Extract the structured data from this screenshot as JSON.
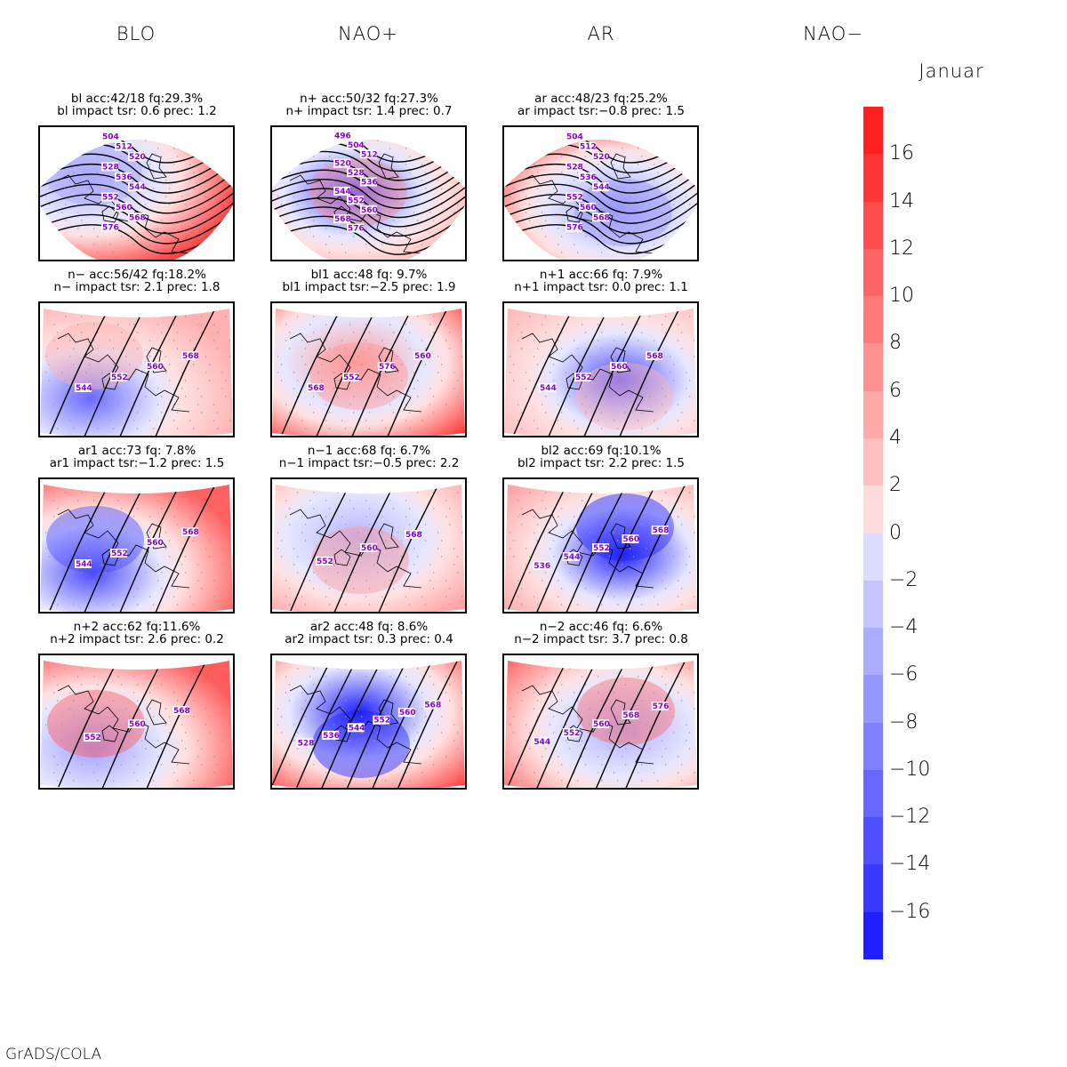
{
  "columns": [
    "BLO",
    "NAO+",
    "AR",
    "NAO−"
  ],
  "month": "Januar",
  "footer": "GrADS/COLA",
  "colorbar": {
    "ticks": [
      "16",
      "14",
      "12",
      "10",
      "8",
      "6",
      "4",
      "2",
      "0",
      "−2",
      "−4",
      "−6",
      "−8",
      "−10",
      "−12",
      "−14",
      "−16"
    ],
    "colors": [
      "#ff1f1f",
      "#ff3535",
      "#ff4d4d",
      "#ff6464",
      "#ff7a7a",
      "#ff9191",
      "#ffa8a8",
      "#ffbfbf",
      "#ffdcdc",
      "#dcdcff",
      "#c4c4ff",
      "#adadff",
      "#9696ff",
      "#7f7fff",
      "#6767ff",
      "#4f4fff",
      "#3838ff",
      "#1f1fff"
    ]
  },
  "panels": [
    {
      "line1": "bl acc:42/18 fq:29.3%",
      "line2": "bl impact tsr: 0.6 prec: 1.2",
      "labels": [
        "504",
        "512",
        "520",
        "528",
        "536",
        "544",
        "552",
        "560",
        "568",
        "576"
      ],
      "map": "wide",
      "warm": "#ff3a3a",
      "cool": "#a9a9ff"
    },
    {
      "line1": "n+ acc:50/32 fq:27.3%",
      "line2": "n+ impact tsr: 1.4 prec: 0.7",
      "labels": [
        "496",
        "504",
        "512",
        "520",
        "528",
        "536",
        "544",
        "552",
        "560",
        "568",
        "576"
      ],
      "map": "wide",
      "warm": "#ff8f8f",
      "cool": "#4646ff"
    },
    {
      "line1": "ar acc:48/23 fq:25.2%",
      "line2": "ar impact tsr:−0.8 prec: 1.5",
      "labels": [
        "504",
        "512",
        "520",
        "528",
        "536",
        "544",
        "552",
        "560",
        "568",
        "576"
      ],
      "map": "wide",
      "warm": "#ff1f1f",
      "cool": "#9a9aff"
    },
    {
      "line1": "n− acc:56/42 fq:18.2%",
      "line2": "n− impact tsr: 2.1 prec: 1.8",
      "labels": [
        "544",
        "552",
        "560",
        "568"
      ],
      "map": "zoom",
      "warm": "#ffb0b0",
      "cool": "#6a6aff"
    },
    {
      "line1": "bl1 acc:48 fq: 9.7%",
      "line2": "bl1 impact tsr:−2.5 prec: 1.9",
      "labels": [
        "568",
        "552",
        "576",
        "560"
      ],
      "map": "zoom",
      "warm": "#ff2a2a",
      "cool": "#ff9a9a"
    },
    {
      "line1": "n+1 acc:66 fq: 7.9%",
      "line2": "n+1 impact tsr: 0.0 prec: 1.1",
      "labels": [
        "544",
        "552",
        "560",
        "568"
      ],
      "map": "zoom",
      "warm": "#ffb5b5",
      "cool": "#4c4cff"
    },
    {
      "line1": "ar1 acc:73 fq: 7.8%",
      "line2": "ar1 impact tsr:−1.2 prec: 1.5",
      "labels": [
        "544",
        "552",
        "560",
        "568"
      ],
      "map": "zoom",
      "warm": "#ff6060",
      "cool": "#4b4bff"
    },
    {
      "line1": "n−1 acc:68 fq: 6.7%",
      "line2": "n−1 impact tsr:−0.5 prec: 2.2",
      "labels": [
        "552",
        "560",
        "568"
      ],
      "map": "zoom",
      "warm": "#ff9696",
      "cool": "#b6b6ff"
    },
    {
      "line1": "bl2 acc:69 fq:10.1%",
      "line2": "bl2 impact tsr: 2.2 prec: 1.5",
      "labels": [
        "536",
        "544",
        "552",
        "560",
        "568"
      ],
      "map": "zoom",
      "warm": "#ff9e9e",
      "cool": "#2222ff"
    },
    {
      "line1": "n+2 acc:62 fq:11.6%",
      "line2": "n+2 impact tsr: 2.6 prec: 0.2",
      "labels": [
        "552",
        "560",
        "568"
      ],
      "map": "zoom",
      "warm": "#ff5c5c",
      "cool": "#a0a0ff"
    },
    {
      "line1": "ar2 acc:48 fq: 8.6%",
      "line2": "ar2 impact tsr: 0.3 prec: 0.4",
      "labels": [
        "528",
        "536",
        "544",
        "552",
        "560",
        "568"
      ],
      "map": "zoom",
      "warm": "#ff3838",
      "cool": "#1f1fff"
    },
    {
      "line1": "n−2 acc:46 fq: 6.6%",
      "line2": "n−2 impact tsr: 3.7 prec: 0.8",
      "labels": [
        "544",
        "552",
        "560",
        "568",
        "576"
      ],
      "map": "zoom",
      "warm": "#ff6a6a",
      "cool": "#b0b0ff"
    }
  ]
}
